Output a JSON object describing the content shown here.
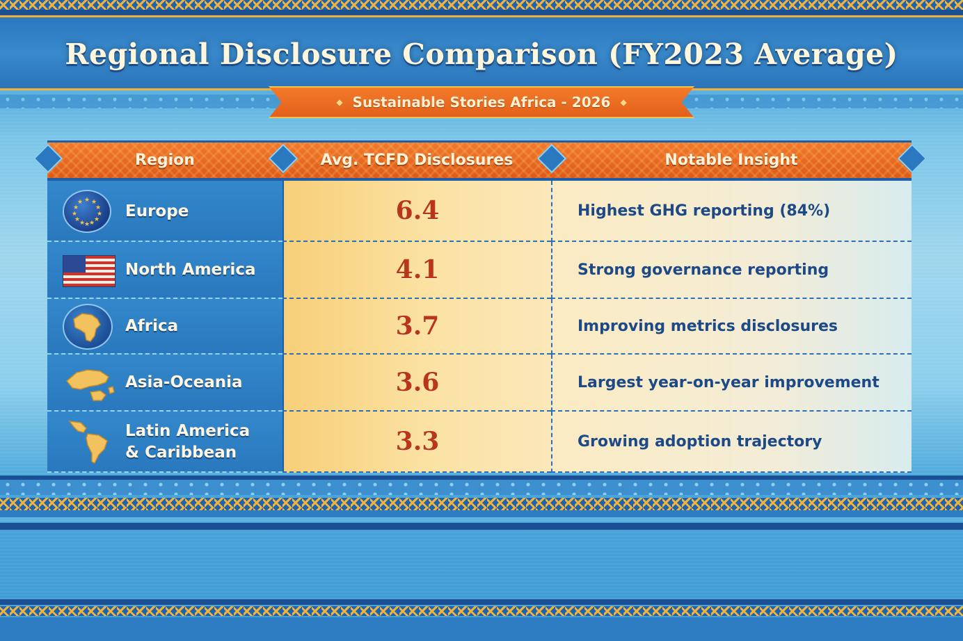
{
  "header": {
    "title": "Regional Disclosure Comparison (FY2023 Average)",
    "subtitle": "Sustainable Stories Africa - 2026"
  },
  "chart_data": {
    "type": "table",
    "columns": [
      "Region",
      "Avg. TCFD Disclosures",
      "Notable Insight"
    ],
    "rows": [
      {
        "region": "Europe",
        "icon": "eu-flag-icon",
        "avg": "6.4",
        "insight": "Highest GHG reporting (84%)"
      },
      {
        "region": "North America",
        "icon": "us-flag-icon",
        "avg": "4.1",
        "insight": "Strong governance reporting"
      },
      {
        "region": "Africa",
        "icon": "africa-map-icon",
        "avg": "3.7",
        "insight": "Improving metrics disclosures"
      },
      {
        "region": "Asia-Oceania",
        "icon": "asia-oceania-map-icon",
        "avg": "3.6",
        "insight": "Largest year-on-year improvement"
      },
      {
        "region_line1": "Latin America",
        "region_line2": "& Caribbean",
        "icon": "latin-america-map-icon",
        "avg": "3.3",
        "insight": "Growing adoption trajectory"
      }
    ]
  },
  "colors": {
    "header_orange": "#e2601b",
    "value_red": "#b9361a",
    "insight_blue": "#1d4a86",
    "border_blue": "#1f5ea6",
    "accent_gold": "#f2b33c"
  }
}
